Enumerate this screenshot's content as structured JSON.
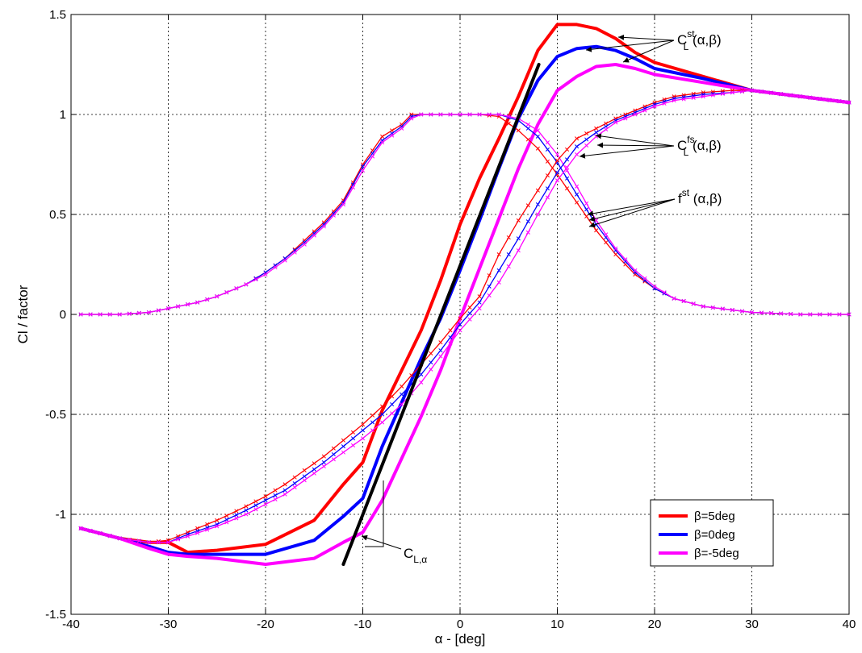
{
  "chart_data": {
    "type": "line",
    "title": "",
    "xlabel": "α - [deg]",
    "ylabel": "Cl / factor",
    "xlim": [
      -40,
      40
    ],
    "ylim": [
      -1.5,
      1.5
    ],
    "xticks": [
      -40,
      -30,
      -20,
      -10,
      0,
      10,
      20,
      30,
      40
    ],
    "xtick_labels": [
      "-40",
      "-30",
      "-20",
      "-10",
      "0",
      "10",
      "20",
      "30",
      "40"
    ],
    "yticks": [
      -1.5,
      -1,
      -0.5,
      0,
      0.5,
      1,
      1.5
    ],
    "ytick_labels": [
      "-1.5",
      "-1",
      "-0.5",
      "0",
      "0.5",
      "1",
      "1.5"
    ],
    "grid": true,
    "legend_position": "bottom-right",
    "colors": {
      "beta5": "#ff0000",
      "beta0": "#0000ff",
      "betam5": "#ff00ff",
      "slope": "#000000"
    },
    "legend": [
      {
        "label": "β=5deg",
        "color": "#ff0000"
      },
      {
        "label": "β=0deg",
        "color": "#0000ff"
      },
      {
        "label": "β=-5deg",
        "color": "#ff00ff"
      }
    ],
    "annotations": {
      "cl_st": {
        "base": "C",
        "sup": "st",
        "sub": "L",
        "args": " (α,β)"
      },
      "cl_fs": {
        "base": "C",
        "sup": "fs",
        "sub": "L",
        "args": " (α,β)"
      },
      "f_st": {
        "base": "f",
        "sup": "st",
        "sub": "",
        "args": " (α,β)"
      },
      "cl_alpha": {
        "base": "C",
        "sup": "",
        "sub": "L,α",
        "args": ""
      }
    },
    "series": [
      {
        "group": "C_L^st",
        "beta": 5,
        "x": [
          -39,
          -35,
          -32,
          -30,
          -28,
          -25,
          -20,
          -15,
          -12,
          -10,
          -8,
          -6,
          -4,
          -2,
          0,
          2,
          4,
          6,
          8,
          10,
          12,
          14,
          16,
          18,
          20,
          25,
          30,
          35,
          40
        ],
        "y": [
          -1.07,
          -1.12,
          -1.14,
          -1.14,
          -1.19,
          -1.18,
          -1.15,
          -1.03,
          -0.85,
          -0.74,
          -0.48,
          -0.28,
          -0.08,
          0.17,
          0.45,
          0.68,
          0.88,
          1.09,
          1.32,
          1.45,
          1.45,
          1.43,
          1.38,
          1.31,
          1.26,
          1.19,
          1.12,
          1.09,
          1.06
        ]
      },
      {
        "group": "C_L^st",
        "beta": 0,
        "x": [
          -39,
          -35,
          -32,
          -30,
          -28,
          -25,
          -20,
          -15,
          -12,
          -10,
          -8,
          -6,
          -4,
          -2,
          0,
          2,
          4,
          6,
          8,
          10,
          12,
          14,
          16,
          18,
          20,
          25,
          30,
          35,
          40
        ],
        "y": [
          -1.07,
          -1.12,
          -1.16,
          -1.19,
          -1.2,
          -1.2,
          -1.2,
          -1.13,
          -1.01,
          -0.92,
          -0.66,
          -0.44,
          -0.22,
          -0.02,
          0.22,
          0.47,
          0.73,
          0.98,
          1.17,
          1.29,
          1.33,
          1.34,
          1.32,
          1.28,
          1.23,
          1.18,
          1.12,
          1.09,
          1.06
        ]
      },
      {
        "group": "C_L^st",
        "beta": -5,
        "x": [
          -39,
          -35,
          -32,
          -30,
          -28,
          -25,
          -20,
          -15,
          -12,
          -10,
          -8,
          -6,
          -4,
          -2,
          0,
          2,
          4,
          6,
          8,
          10,
          12,
          14,
          16,
          18,
          20,
          25,
          30,
          35,
          40
        ],
        "y": [
          -1.07,
          -1.12,
          -1.17,
          -1.2,
          -1.21,
          -1.22,
          -1.25,
          -1.22,
          -1.14,
          -1.09,
          -0.93,
          -0.72,
          -0.51,
          -0.28,
          -0.02,
          0.23,
          0.48,
          0.73,
          0.95,
          1.12,
          1.19,
          1.24,
          1.25,
          1.23,
          1.2,
          1.16,
          1.12,
          1.09,
          1.06
        ]
      },
      {
        "group": "f^st",
        "beta": 5,
        "x": [
          -39,
          -35,
          -32,
          -30,
          -27,
          -25,
          -22,
          -20,
          -18,
          -16,
          -14,
          -12,
          -10,
          -8,
          -6,
          -5,
          -4,
          -2,
          0,
          2,
          4,
          6,
          8,
          10,
          12,
          14,
          16,
          18,
          20,
          22,
          25,
          30,
          35,
          40
        ],
        "y": [
          0,
          0,
          0.01,
          0.03,
          0.06,
          0.09,
          0.15,
          0.21,
          0.28,
          0.37,
          0.46,
          0.57,
          0.75,
          0.89,
          0.95,
          1,
          1,
          1,
          1,
          1,
          0.99,
          0.92,
          0.83,
          0.7,
          0.56,
          0.42,
          0.3,
          0.2,
          0.13,
          0.08,
          0.04,
          0.01,
          0,
          0
        ]
      },
      {
        "group": "f^st",
        "beta": 0,
        "x": [
          -39,
          -35,
          -32,
          -30,
          -27,
          -25,
          -22,
          -20,
          -18,
          -16,
          -14,
          -12,
          -10,
          -8,
          -6,
          -5,
          -4,
          -2,
          0,
          2,
          4,
          6,
          8,
          10,
          12,
          14,
          16,
          18,
          20,
          22,
          25,
          30,
          35,
          40
        ],
        "y": [
          0,
          0,
          0.01,
          0.03,
          0.06,
          0.09,
          0.15,
          0.21,
          0.28,
          0.36,
          0.45,
          0.56,
          0.74,
          0.87,
          0.94,
          0.99,
          1,
          1,
          1,
          1,
          1,
          0.97,
          0.89,
          0.76,
          0.6,
          0.45,
          0.32,
          0.21,
          0.13,
          0.08,
          0.04,
          0.01,
          0,
          0
        ]
      },
      {
        "group": "f^st",
        "beta": -5,
        "x": [
          -39,
          -35,
          -32,
          -30,
          -27,
          -25,
          -22,
          -20,
          -18,
          -16,
          -14,
          -12,
          -10,
          -8,
          -6,
          -5,
          -4,
          -2,
          0,
          2,
          4,
          6,
          8,
          10,
          12,
          14,
          16,
          18,
          20,
          22,
          25,
          30,
          35,
          40
        ],
        "y": [
          0,
          0,
          0.01,
          0.03,
          0.06,
          0.09,
          0.15,
          0.2,
          0.27,
          0.35,
          0.44,
          0.55,
          0.72,
          0.86,
          0.93,
          0.98,
          1,
          1,
          1,
          1,
          1,
          0.98,
          0.92,
          0.8,
          0.64,
          0.47,
          0.33,
          0.22,
          0.14,
          0.08,
          0.04,
          0.01,
          0,
          0
        ]
      },
      {
        "group": "C_L^fs",
        "beta": 5,
        "x": [
          -39,
          -35,
          -32,
          -30,
          -28,
          -25,
          -22,
          -20,
          -18,
          -16,
          -14,
          -12,
          -10,
          -8,
          -6,
          -4,
          -2,
          0,
          2,
          4,
          6,
          8,
          10,
          12,
          14,
          16,
          18,
          20,
          22,
          25,
          28,
          30,
          35,
          40
        ],
        "y": [
          -1.07,
          -1.12,
          -1.14,
          -1.13,
          -1.09,
          -1.03,
          -0.96,
          -0.91,
          -0.85,
          -0.78,
          -0.71,
          -0.63,
          -0.55,
          -0.46,
          -0.36,
          -0.25,
          -0.14,
          -0.02,
          0.09,
          0.3,
          0.47,
          0.62,
          0.77,
          0.88,
          0.93,
          0.98,
          1.02,
          1.06,
          1.09,
          1.11,
          1.12,
          1.12,
          1.09,
          1.06
        ]
      },
      {
        "group": "C_L^fs",
        "beta": 0,
        "x": [
          -39,
          -35,
          -32,
          -30,
          -28,
          -25,
          -22,
          -20,
          -18,
          -16,
          -14,
          -12,
          -10,
          -8,
          -6,
          -4,
          -2,
          0,
          2,
          4,
          6,
          8,
          10,
          12,
          14,
          16,
          18,
          20,
          22,
          25,
          28,
          30,
          35,
          40
        ],
        "y": [
          -1.07,
          -1.12,
          -1.14,
          -1.14,
          -1.1,
          -1.05,
          -0.98,
          -0.93,
          -0.88,
          -0.81,
          -0.74,
          -0.66,
          -0.58,
          -0.5,
          -0.4,
          -0.3,
          -0.18,
          -0.05,
          0.06,
          0.22,
          0.38,
          0.55,
          0.71,
          0.84,
          0.91,
          0.97,
          1.01,
          1.05,
          1.08,
          1.1,
          1.11,
          1.12,
          1.09,
          1.06
        ]
      },
      {
        "group": "C_L^fs",
        "beta": -5,
        "x": [
          -39,
          -35,
          -32,
          -30,
          -28,
          -25,
          -22,
          -20,
          -18,
          -16,
          -14,
          -12,
          -10,
          -8,
          -6,
          -4,
          -2,
          0,
          2,
          4,
          6,
          8,
          10,
          12,
          14,
          16,
          18,
          20,
          22,
          25,
          28,
          30,
          35,
          40
        ],
        "y": [
          -1.07,
          -1.12,
          -1.14,
          -1.14,
          -1.11,
          -1.06,
          -1,
          -0.95,
          -0.9,
          -0.83,
          -0.76,
          -0.69,
          -0.62,
          -0.54,
          -0.45,
          -0.34,
          -0.21,
          -0.08,
          0.03,
          0.16,
          0.32,
          0.5,
          0.67,
          0.8,
          0.89,
          0.96,
          1,
          1.04,
          1.07,
          1.09,
          1.11,
          1.12,
          1.09,
          1.06
        ]
      },
      {
        "group": "C_L,alpha",
        "beta": null,
        "x": [
          -12,
          8.1
        ],
        "y": [
          -1.25,
          1.25
        ]
      }
    ]
  }
}
